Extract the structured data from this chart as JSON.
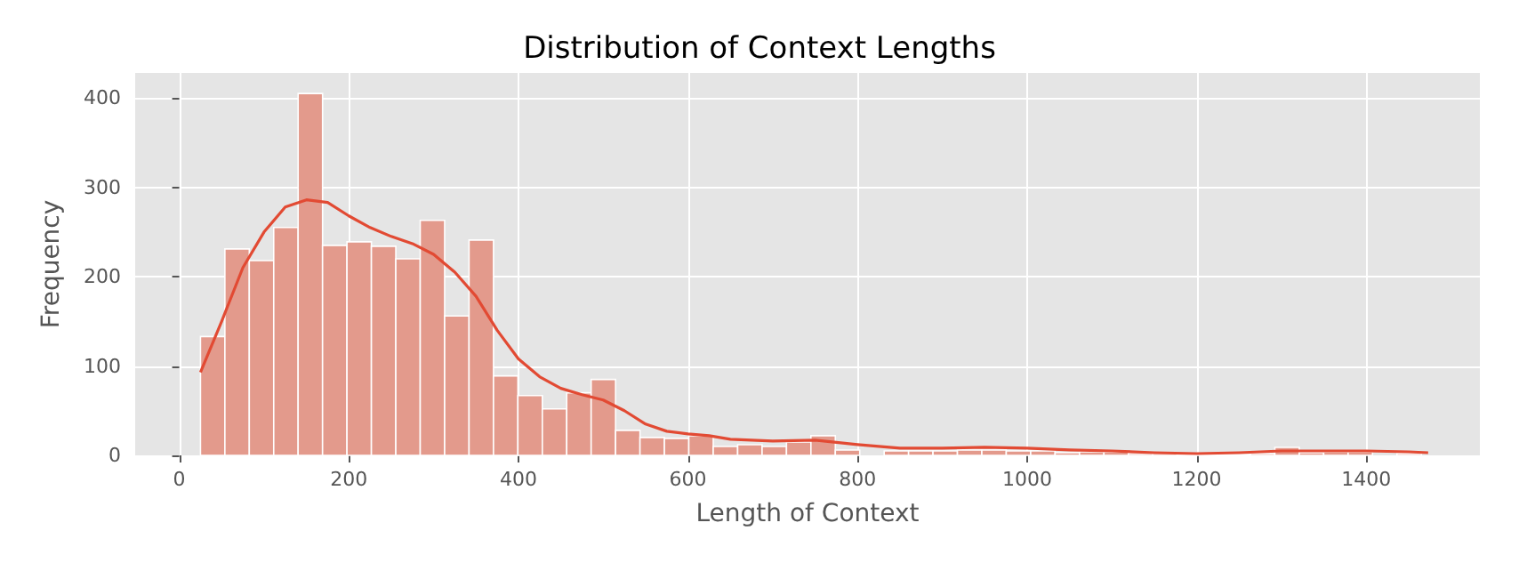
{
  "chart_data": {
    "type": "histogram",
    "title": "Distribution of Context Lengths",
    "xlabel": "Length of Context",
    "ylabel": "Frequency",
    "bins": [
      25,
      53.8,
      82.6,
      111.4,
      140.2,
      169,
      197.8,
      226.6,
      255.4,
      284.2,
      313,
      341.8,
      370.6,
      399.4,
      428.2,
      457,
      485.8,
      514.6,
      543.4,
      572.2,
      601,
      629.8,
      658.6,
      687.4,
      716.2,
      745,
      773.8,
      802.6,
      831.4,
      860.2,
      889,
      917.8,
      946.6,
      975.4,
      1004.2,
      1033,
      1061.8,
      1090.6,
      1119.4,
      1148.2,
      1177,
      1205.8,
      1234.6,
      1263.4,
      1292.2,
      1321,
      1349.8,
      1378.6,
      1407.4,
      1436.2,
      1465
    ],
    "values": [
      133,
      231,
      218,
      255,
      405,
      235,
      239,
      234,
      220,
      263,
      156,
      241,
      89,
      67,
      52,
      70,
      85,
      28,
      20,
      19,
      22,
      10,
      12,
      10,
      15,
      22,
      6,
      null,
      5,
      5,
      5,
      6,
      6,
      5,
      5,
      3,
      4,
      4,
      2,
      2,
      1,
      1,
      1,
      2,
      9,
      3,
      4,
      4,
      null,
      2
    ],
    "color": "#e39a8c",
    "series": [
      {
        "type": "line",
        "color": "#e24a33",
        "x": [
          25,
          50,
          75,
          100,
          125,
          150,
          175,
          200,
          225,
          250,
          275,
          300,
          325,
          350,
          375,
          400,
          425,
          450,
          475,
          500,
          525,
          550,
          575,
          600,
          625,
          650,
          700,
          750,
          800,
          850,
          900,
          950,
          1000,
          1050,
          1100,
          1150,
          1200,
          1250,
          1300,
          1350,
          1400,
          1450,
          1473
        ],
        "values": [
          93,
          150,
          210,
          250,
          278,
          286,
          283,
          268,
          255,
          245,
          237,
          225,
          205,
          178,
          140,
          108,
          88,
          75,
          68,
          62,
          50,
          35,
          27,
          24,
          22,
          18,
          16,
          17,
          12,
          8,
          8,
          9,
          8,
          6,
          5,
          3,
          2,
          3,
          5,
          5,
          5,
          4,
          3
        ]
      }
    ],
    "xlim": [
      -52,
      1534
    ],
    "xticks": [
      0,
      200,
      400,
      600,
      800,
      1000,
      1200,
      1400
    ],
    "ylim": [
      0,
      428
    ],
    "yticks": [
      0,
      100,
      200,
      300,
      400
    ],
    "grid": true
  }
}
